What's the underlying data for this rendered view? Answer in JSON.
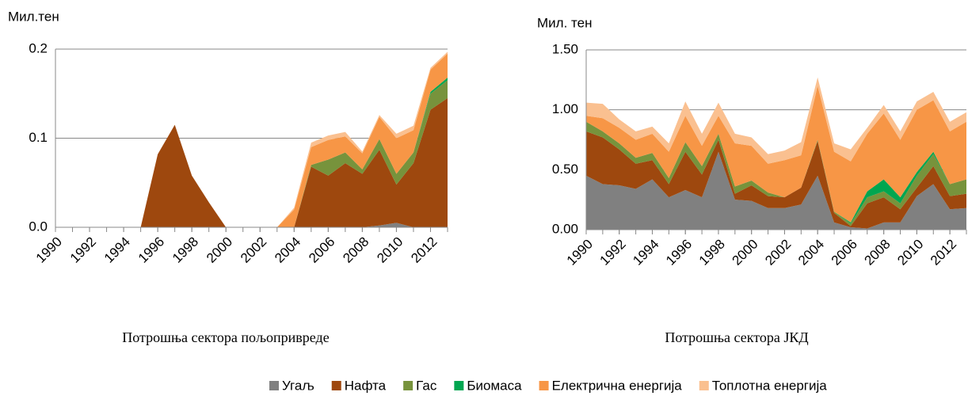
{
  "chart_data": [
    {
      "type": "area",
      "stacked": true,
      "ylabel": "Мил.тен",
      "title": "Потрошња сектора пољопривреде",
      "x": [
        1990,
        1991,
        1992,
        1993,
        1994,
        1995,
        1996,
        1997,
        1998,
        1999,
        2000,
        2001,
        2002,
        2003,
        2004,
        2005,
        2006,
        2007,
        2008,
        2009,
        2010,
        2011,
        2012,
        2013
      ],
      "xlim": [
        1990,
        2013
      ],
      "xticks": [
        1990,
        1992,
        1994,
        1996,
        1998,
        2000,
        2002,
        2004,
        2006,
        2008,
        2010,
        2012
      ],
      "ylim": [
        0,
        0.2
      ],
      "yticks": [
        {
          "value": 0,
          "label": "0.0"
        },
        0.1,
        0.2
      ],
      "grid": true,
      "series": [
        {
          "name": "Угаљ",
          "color": "#808080",
          "values": [
            0,
            0,
            0,
            0,
            0,
            0,
            0,
            0,
            0,
            0,
            0,
            0,
            0,
            0,
            0,
            0,
            0,
            0,
            0,
            0.002,
            0.005,
            0,
            0,
            0
          ]
        },
        {
          "name": "Нафта",
          "color": "#9e480e",
          "values": [
            0,
            0,
            0,
            0,
            0,
            0,
            0.082,
            0.115,
            0.058,
            0.028,
            0,
            0,
            0,
            0,
            0,
            0.068,
            0.058,
            0.072,
            0.06,
            0.085,
            0.043,
            0.072,
            0.132,
            0.145
          ]
        },
        {
          "name": "Гас",
          "color": "#77933c",
          "values": [
            0,
            0,
            0,
            0,
            0,
            0,
            0,
            0,
            0,
            0,
            0,
            0,
            0,
            0,
            0,
            0.002,
            0.018,
            0.012,
            0.005,
            0.012,
            0.012,
            0.012,
            0.018,
            0.02
          ]
        },
        {
          "name": "Биомаса",
          "color": "#00a650",
          "values": [
            0,
            0,
            0,
            0,
            0,
            0,
            0,
            0,
            0,
            0,
            0,
            0,
            0,
            0,
            0,
            0,
            0,
            0,
            0,
            0,
            0,
            0,
            0.002,
            0.003
          ]
        },
        {
          "name": "Електрична енергија",
          "color": "#f79646",
          "values": [
            0,
            0,
            0,
            0,
            0,
            0,
            0,
            0,
            0,
            0,
            0,
            0,
            0,
            0,
            0.02,
            0.02,
            0.022,
            0.018,
            0.018,
            0.025,
            0.04,
            0.025,
            0.025,
            0.027
          ]
        },
        {
          "name": "Топлотна енергија",
          "color": "#fac090",
          "values": [
            0,
            0,
            0,
            0,
            0,
            0,
            0,
            0,
            0,
            0,
            0,
            0,
            0,
            0,
            0.002,
            0.005,
            0.005,
            0.005,
            0.002,
            0.002,
            0.005,
            0.005,
            0.002,
            0.002
          ]
        }
      ]
    },
    {
      "type": "area",
      "stacked": true,
      "ylabel": "Мил. тен",
      "title": "Потрошња сектора ЈКД",
      "x": [
        1990,
        1991,
        1992,
        1993,
        1994,
        1995,
        1996,
        1997,
        1998,
        1999,
        2000,
        2001,
        2002,
        2003,
        2004,
        2005,
        2006,
        2007,
        2008,
        2009,
        2010,
        2011,
        2012,
        2013
      ],
      "xlim": [
        1990,
        2013
      ],
      "xticks": [
        1990,
        1992,
        1994,
        1996,
        1998,
        2000,
        2002,
        2004,
        2006,
        2008,
        2010,
        2012
      ],
      "ylim": [
        0,
        1.5
      ],
      "yticks": [
        {
          "value": 0,
          "label": "0.00"
        },
        {
          "value": 0.5,
          "label": "0.50"
        },
        {
          "value": 1,
          "label": "1.00"
        },
        {
          "value": 1.5,
          "label": "1.50"
        }
      ],
      "grid": true,
      "series": [
        {
          "name": "Угаљ",
          "color": "#808080",
          "values": [
            0.45,
            0.38,
            0.37,
            0.34,
            0.42,
            0.27,
            0.33,
            0.27,
            0.65,
            0.25,
            0.24,
            0.18,
            0.18,
            0.21,
            0.45,
            0.06,
            0.02,
            0.01,
            0.06,
            0.06,
            0.28,
            0.38,
            0.17,
            0.18
          ]
        },
        {
          "name": "Нафта",
          "color": "#9e480e",
          "values": [
            0.37,
            0.39,
            0.3,
            0.21,
            0.16,
            0.11,
            0.32,
            0.19,
            0.1,
            0.05,
            0.13,
            0.1,
            0.09,
            0.14,
            0.29,
            0.08,
            0.01,
            0.21,
            0.21,
            0.11,
            0.07,
            0.15,
            0.11,
            0.12
          ]
        },
        {
          "name": "Гас",
          "color": "#77933c",
          "values": [
            0.08,
            0.05,
            0.05,
            0.05,
            0.06,
            0.05,
            0.08,
            0.07,
            0.05,
            0.06,
            0.04,
            0.03,
            0,
            0,
            0.01,
            0.01,
            0.02,
            0.05,
            0.05,
            0.05,
            0.1,
            0.1,
            0.1,
            0.12
          ]
        },
        {
          "name": "Биомаса",
          "color": "#00a650",
          "values": [
            0,
            0,
            0,
            0,
            0,
            0,
            0,
            0,
            0,
            0,
            0,
            0,
            0,
            0,
            0,
            0,
            0.01,
            0.05,
            0.1,
            0.05,
            0.03,
            0.02,
            0,
            0
          ]
        },
        {
          "name": "Електрична енергија",
          "color": "#f79646",
          "values": [
            0.05,
            0.11,
            0.13,
            0.15,
            0.16,
            0.22,
            0.22,
            0.17,
            0.15,
            0.36,
            0.29,
            0.24,
            0.31,
            0.27,
            0.45,
            0.5,
            0.51,
            0.48,
            0.55,
            0.48,
            0.52,
            0.43,
            0.44,
            0.48
          ]
        },
        {
          "name": "Топлотна енергија",
          "color": "#fac090",
          "values": [
            0.11,
            0.12,
            0.07,
            0.07,
            0.06,
            0.07,
            0.12,
            0.1,
            0.11,
            0.08,
            0.07,
            0.08,
            0.08,
            0.11,
            0.07,
            0.07,
            0.1,
            0.05,
            0.07,
            0.07,
            0.07,
            0.07,
            0.08,
            0.08
          ]
        }
      ]
    }
  ]
}
